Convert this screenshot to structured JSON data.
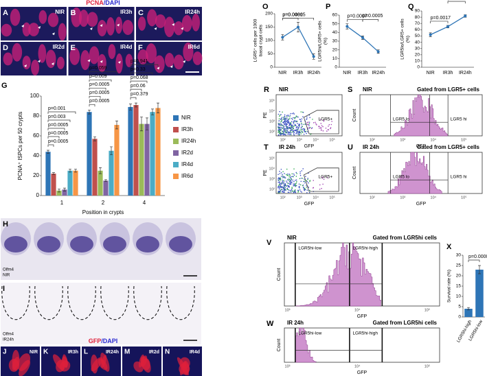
{
  "micrographs": {
    "top_title": [
      "PCNA",
      "/DAPI"
    ],
    "top": [
      {
        "letter": "A",
        "label": "NIR"
      },
      {
        "letter": "B",
        "label": "IR3h"
      },
      {
        "letter": "C",
        "label": "IR24h"
      },
      {
        "letter": "D",
        "label": "IR2d"
      },
      {
        "letter": "E",
        "label": "IR4d"
      },
      {
        "letter": "F",
        "label": "IR6d"
      }
    ],
    "olfm4": [
      {
        "letter": "H",
        "stain": "Olfm4",
        "condition": "NIR"
      },
      {
        "letter": "I",
        "stain": "Olfm4",
        "condition": "IR24h"
      }
    ],
    "bottom_title": [
      "GFP",
      "/DAPI"
    ],
    "bottom": [
      {
        "letter": "J",
        "label": "NIR"
      },
      {
        "letter": "K",
        "label": "IR3h"
      },
      {
        "letter": "L",
        "label": "IR24h"
      },
      {
        "letter": "M",
        "label": "IR2d"
      },
      {
        "letter": "N",
        "label": "IR4d"
      }
    ]
  },
  "flow": [
    {
      "letter": "R",
      "title": "NIR",
      "xlabel": "GFP",
      "ylabel": "PE",
      "gates": [
        "LGR5+"
      ],
      "xticks": [
        "10²",
        "10³",
        "10⁴",
        "10⁵"
      ],
      "yticks": [
        "10²",
        "10³",
        "10⁴",
        "10⁵"
      ]
    },
    {
      "letter": "S",
      "title": "NIR",
      "header": "Gated from LGR5+ cells",
      "xlabel": "GFP",
      "ylabel": "Count",
      "gates": [
        "LGR5 lo",
        "LGR5 hi"
      ],
      "xticks": [
        "10²",
        "10³",
        "10⁴",
        "10⁵"
      ]
    },
    {
      "letter": "T",
      "title": "IR 24h",
      "xlabel": "GFP",
      "ylabel": "PE",
      "gates": [
        "LGR5+"
      ],
      "xticks": [
        "10²",
        "10³",
        "10⁴",
        "10⁵"
      ],
      "yticks": [
        "10²",
        "10³",
        "10⁴",
        "10⁵"
      ]
    },
    {
      "letter": "U",
      "title": "IR 24h",
      "header": "Gated from LGR5+ cells",
      "xlabel": "GFP",
      "ylabel": "Count",
      "gates": [
        "LGR5 lo",
        "LGR5 hi"
      ],
      "xticks": [
        "10²",
        "10³",
        "10⁴",
        "10⁵"
      ]
    },
    {
      "letter": "V",
      "title": "NIR",
      "header": "Gated from LGR5hi cells",
      "xlabel": "GFP",
      "ylabel": "Count",
      "gates": [
        "LGR5hi-low",
        "LGR5hi-high"
      ],
      "xticks": [
        "10³",
        "10⁴",
        "10⁵"
      ]
    },
    {
      "letter": "W",
      "title": "IR 24h",
      "header": "Gated from LGR5hi cells",
      "xlabel": "GFP",
      "ylabel": "Count",
      "gates": [
        "LGR5hi-low",
        "LGR5hi-high"
      ],
      "xticks": [
        "10³",
        "10⁴",
        "10⁵"
      ]
    }
  ],
  "chart_data": [
    {
      "type": "bar",
      "letter": "G",
      "ylabel": "PCNA⁺ ISPCs per 50 crypts",
      "xlabel": "Position in crypts",
      "categories": [
        "1",
        "2",
        "4"
      ],
      "series": [
        {
          "name": "NIR",
          "color": "#2e75b6",
          "values": [
            44,
            84,
            89
          ],
          "errors": [
            1.5,
            2,
            3
          ]
        },
        {
          "name": "IR3h",
          "color": "#c0504d",
          "values": [
            22,
            57,
            91
          ],
          "errors": [
            1,
            2,
            2
          ]
        },
        {
          "name": "IR24h",
          "color": "#9bbb59",
          "values": [
            5,
            25,
            72
          ],
          "errors": [
            1.5,
            3,
            7
          ]
        },
        {
          "name": "IR2d",
          "color": "#8064a2",
          "values": [
            6,
            15,
            72
          ],
          "errors": [
            1.5,
            1,
            6
          ]
        },
        {
          "name": "IR4d",
          "color": "#4bacc6",
          "values": [
            25,
            45,
            84
          ],
          "errors": [
            1.5,
            4,
            3
          ]
        },
        {
          "name": "IR6d",
          "color": "#f79646",
          "values": [
            25,
            71,
            88
          ],
          "errors": [
            1.5,
            4,
            5
          ]
        }
      ],
      "annotations": [
        [
          "p=0.001",
          "p=0.003",
          "p=0.0005",
          "p=0.0005",
          "p=0.0005"
        ],
        [
          "p=0.059",
          "p=0.009",
          "p=0.0005",
          "p=0.0005",
          "p=0.0005"
        ],
        [
          "p=0.941",
          "p=0.33",
          "p=0.068",
          "p=0.06",
          "p=0.379"
        ]
      ],
      "ylim": [
        0,
        100
      ],
      "yticks": [
        0,
        20,
        40,
        60,
        80,
        100
      ],
      "legend": "right"
    },
    {
      "type": "line",
      "letter": "O",
      "ylabel": [
        "LGR5⁺ cells per 1000",
        "basal crypt cells"
      ],
      "categories": [
        "NIR",
        "IR3h",
        "IR24h"
      ],
      "values": [
        112,
        150,
        40
      ],
      "errors": [
        10,
        18,
        10
      ],
      "color": "#2e75b6",
      "annotations": [
        "p=0.00005",
        "p=0.0481"
      ],
      "ylim": [
        0,
        200
      ],
      "yticks": [
        0,
        50,
        100,
        150,
        200
      ]
    },
    {
      "type": "line",
      "letter": "P",
      "ylabel": [
        "LGR5hi/LGR5+ cells",
        "(%)"
      ],
      "categories": [
        "NIR",
        "IR3h",
        "IR24h"
      ],
      "values": [
        47,
        34,
        18
      ],
      "errors": [
        3,
        2,
        2
      ],
      "color": "#2e75b6",
      "annotations": [
        "p=0.0005",
        "p=0.0007"
      ],
      "ylim": [
        0,
        60
      ],
      "yticks": [
        0,
        10,
        20,
        30,
        40,
        50,
        60
      ]
    },
    {
      "type": "line",
      "letter": "Q",
      "ylabel": [
        "LGR5lo/LGR5+ cells",
        "(%)"
      ],
      "categories": [
        "NIR",
        "IR3h",
        "IR24h"
      ],
      "values": [
        52,
        65,
        82
      ],
      "errors": [
        3,
        2,
        2
      ],
      "color": "#2e75b6",
      "annotations": [
        "p=0.0005",
        "p=0.0017"
      ],
      "ylim": [
        0,
        90
      ],
      "yticks": [
        0,
        10,
        20,
        30,
        40,
        50,
        60,
        70,
        80,
        90
      ]
    },
    {
      "type": "bar",
      "letter": "X",
      "ylabel": [
        "Survival rate (%)"
      ],
      "categories": [
        "LGR5hi-high",
        "LGR5hi-low"
      ],
      "values": [
        4,
        23
      ],
      "errors": [
        0.6,
        2
      ],
      "color": "#2e75b6",
      "annotations": [
        "p=0.00005"
      ],
      "ylim": [
        0,
        30
      ],
      "yticks": [
        0,
        5,
        10,
        15,
        20,
        25,
        30
      ]
    }
  ]
}
